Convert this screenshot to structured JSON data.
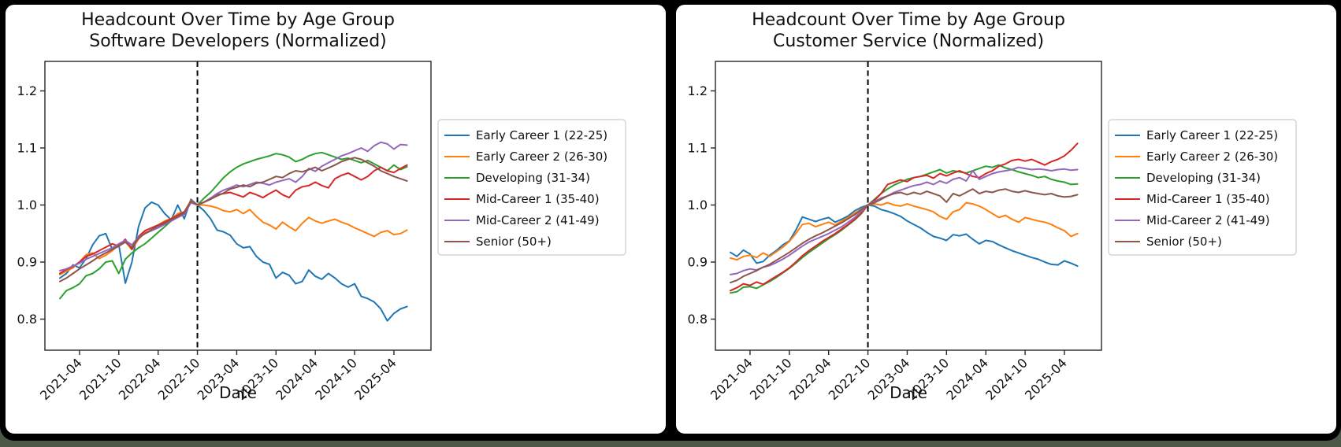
{
  "page": {
    "desktop_background": "#4d5946",
    "backdrop_color": "#000000",
    "card_background": "#ffffff"
  },
  "chart_data": [
    {
      "type": "line",
      "title_line1": "Headcount Over Time by Age Group",
      "title_line2": "Software Developers (Normalized)",
      "xlabel": "Date",
      "ylabel": "",
      "ylim": [
        0.745,
        1.252
      ],
      "grid": false,
      "legend_position": "right-outside",
      "y_tick_values": [
        0.8,
        0.9,
        1.0,
        1.1,
        1.2
      ],
      "y_tick_labels": [
        "0.8",
        "0.9",
        "1.0",
        "1.1",
        "1.2"
      ],
      "x_tick_labels": [
        "2021-04",
        "2021-10",
        "2022-04",
        "2022-10",
        "2023-04",
        "2023-10",
        "2024-04",
        "2024-10",
        "2025-04"
      ],
      "x_tick_point_indices": [
        3,
        9,
        15,
        21,
        27,
        33,
        39,
        45,
        51
      ],
      "x_months_start": "2021-01",
      "normalization_line_label": "2022-10",
      "normalization_line_index": 21,
      "series": [
        {
          "name": "Early Career 1 (22-25)",
          "color": "#1f77b4",
          "values": [
            0.872,
            0.88,
            0.895,
            0.89,
            0.906,
            0.93,
            0.946,
            0.95,
            0.922,
            0.93,
            0.863,
            0.9,
            0.962,
            0.995,
            1.005,
            1.0,
            0.985,
            0.974,
            1.0,
            0.976,
            1.01,
            1.0,
            0.99,
            0.976,
            0.956,
            0.953,
            0.947,
            0.932,
            0.925,
            0.927,
            0.91,
            0.9,
            0.896,
            0.872,
            0.882,
            0.877,
            0.862,
            0.866,
            0.886,
            0.875,
            0.87,
            0.88,
            0.872,
            0.862,
            0.856,
            0.862,
            0.84,
            0.836,
            0.83,
            0.818,
            0.797,
            0.81,
            0.818,
            0.822
          ]
        },
        {
          "name": "Early Career 2 (26-30)",
          "color": "#ff7f0e",
          "values": [
            0.878,
            0.884,
            0.89,
            0.9,
            0.913,
            0.916,
            0.906,
            0.912,
            0.92,
            0.93,
            0.935,
            0.922,
            0.94,
            0.952,
            0.955,
            0.965,
            0.972,
            0.976,
            0.985,
            0.988,
            1.008,
            1.0,
            1.0,
            0.998,
            0.995,
            0.99,
            0.988,
            0.992,
            0.985,
            0.992,
            0.98,
            0.97,
            0.965,
            0.958,
            0.97,
            0.962,
            0.955,
            0.968,
            0.978,
            0.972,
            0.968,
            0.972,
            0.975,
            0.97,
            0.966,
            0.96,
            0.955,
            0.95,
            0.945,
            0.952,
            0.955,
            0.948,
            0.95,
            0.956
          ]
        },
        {
          "name": "Developing (31-34)",
          "color": "#2ca02c",
          "values": [
            0.836,
            0.85,
            0.855,
            0.862,
            0.876,
            0.88,
            0.888,
            0.9,
            0.902,
            0.88,
            0.905,
            0.916,
            0.925,
            0.932,
            0.942,
            0.952,
            0.962,
            0.972,
            0.98,
            0.986,
            1.005,
            1.0,
            1.012,
            1.022,
            1.035,
            1.048,
            1.058,
            1.066,
            1.072,
            1.076,
            1.08,
            1.083,
            1.086,
            1.09,
            1.088,
            1.084,
            1.076,
            1.08,
            1.086,
            1.09,
            1.092,
            1.088,
            1.084,
            1.08,
            1.082,
            1.078,
            1.074,
            1.078,
            1.072,
            1.066,
            1.06,
            1.07,
            1.062,
            1.067
          ]
        },
        {
          "name": "Mid-Career 1 (35-40)",
          "color": "#d62728",
          "values": [
            0.88,
            0.887,
            0.892,
            0.9,
            0.91,
            0.914,
            0.92,
            0.926,
            0.932,
            0.928,
            0.94,
            0.922,
            0.945,
            0.955,
            0.96,
            0.965,
            0.97,
            0.976,
            0.982,
            0.988,
            1.006,
            1.0,
            1.005,
            1.012,
            1.018,
            1.02,
            1.022,
            1.018,
            1.014,
            1.022,
            1.018,
            1.013,
            1.02,
            1.026,
            1.018,
            1.013,
            1.026,
            1.032,
            1.034,
            1.04,
            1.034,
            1.03,
            1.046,
            1.052,
            1.056,
            1.05,
            1.044,
            1.05,
            1.06,
            1.066,
            1.06,
            1.057,
            1.064,
            1.07
          ]
        },
        {
          "name": "Mid-Career 2 (41-49)",
          "color": "#9467bd",
          "values": [
            0.885,
            0.888,
            0.893,
            0.898,
            0.905,
            0.91,
            0.915,
            0.92,
            0.925,
            0.932,
            0.938,
            0.93,
            0.944,
            0.95,
            0.955,
            0.96,
            0.966,
            0.972,
            0.978,
            0.984,
            1.004,
            1.0,
            1.005,
            1.012,
            1.02,
            1.026,
            1.03,
            1.035,
            1.032,
            1.036,
            1.04,
            1.038,
            1.035,
            1.04,
            1.043,
            1.046,
            1.04,
            1.05,
            1.064,
            1.059,
            1.068,
            1.074,
            1.08,
            1.086,
            1.09,
            1.095,
            1.1,
            1.094,
            1.104,
            1.11,
            1.107,
            1.098,
            1.106,
            1.105
          ]
        },
        {
          "name": "Senior (50+)",
          "color": "#8c564b",
          "values": [
            0.866,
            0.872,
            0.88,
            0.888,
            0.895,
            0.902,
            0.91,
            0.916,
            0.922,
            0.928,
            0.935,
            0.926,
            0.942,
            0.95,
            0.957,
            0.963,
            0.968,
            0.974,
            0.98,
            0.986,
            1.007,
            1.0,
            1.005,
            1.01,
            1.016,
            1.021,
            1.028,
            1.031,
            1.035,
            1.032,
            1.038,
            1.04,
            1.045,
            1.05,
            1.048,
            1.055,
            1.06,
            1.058,
            1.062,
            1.066,
            1.06,
            1.065,
            1.07,
            1.076,
            1.08,
            1.083,
            1.08,
            1.074,
            1.068,
            1.06,
            1.055,
            1.05,
            1.046,
            1.042
          ]
        }
      ]
    },
    {
      "type": "line",
      "title_line1": "Headcount Over Time by Age Group",
      "title_line2": "Customer Service (Normalized)",
      "xlabel": "Date",
      "ylabel": "",
      "ylim": [
        0.745,
        1.252
      ],
      "grid": false,
      "legend_position": "right-outside",
      "y_tick_values": [
        0.8,
        0.9,
        1.0,
        1.1,
        1.2
      ],
      "y_tick_labels": [
        "0.8",
        "0.9",
        "1.0",
        "1.1",
        "1.2"
      ],
      "x_tick_labels": [
        "2021-04",
        "2021-10",
        "2022-04",
        "2022-10",
        "2023-04",
        "2023-10",
        "2024-04",
        "2024-10",
        "2025-04"
      ],
      "x_tick_point_indices": [
        3,
        9,
        15,
        21,
        27,
        33,
        39,
        45,
        51
      ],
      "x_months_start": "2021-01",
      "normalization_line_label": "2022-10",
      "normalization_line_index": 21,
      "series": [
        {
          "name": "Early Career 1 (22-25)",
          "color": "#1f77b4",
          "values": [
            0.917,
            0.91,
            0.921,
            0.914,
            0.898,
            0.901,
            0.912,
            0.92,
            0.93,
            0.937,
            0.956,
            0.979,
            0.975,
            0.971,
            0.975,
            0.978,
            0.97,
            0.975,
            0.981,
            0.99,
            0.996,
            1.0,
            0.998,
            0.992,
            0.989,
            0.985,
            0.98,
            0.972,
            0.966,
            0.96,
            0.952,
            0.945,
            0.942,
            0.938,
            0.948,
            0.946,
            0.949,
            0.94,
            0.932,
            0.938,
            0.936,
            0.93,
            0.925,
            0.92,
            0.916,
            0.912,
            0.908,
            0.905,
            0.9,
            0.896,
            0.895,
            0.902,
            0.898,
            0.893
          ]
        },
        {
          "name": "Early Career 2 (26-30)",
          "color": "#ff7f0e",
          "values": [
            0.907,
            0.904,
            0.91,
            0.912,
            0.908,
            0.916,
            0.91,
            0.918,
            0.926,
            0.936,
            0.95,
            0.966,
            0.968,
            0.962,
            0.966,
            0.97,
            0.965,
            0.972,
            0.978,
            0.986,
            0.993,
            1.0,
            1.002,
            1.0,
            1.004,
            1.0,
            0.998,
            1.002,
            0.998,
            0.995,
            0.992,
            0.988,
            0.98,
            0.975,
            0.988,
            0.992,
            1.004,
            1.002,
            0.998,
            0.992,
            0.985,
            0.978,
            0.982,
            0.975,
            0.97,
            0.978,
            0.975,
            0.972,
            0.97,
            0.966,
            0.96,
            0.955,
            0.945,
            0.95
          ]
        },
        {
          "name": "Developing (31-34)",
          "color": "#2ca02c",
          "values": [
            0.846,
            0.848,
            0.856,
            0.857,
            0.854,
            0.86,
            0.866,
            0.873,
            0.881,
            0.889,
            0.898,
            0.908,
            0.917,
            0.925,
            0.933,
            0.941,
            0.948,
            0.956,
            0.965,
            0.974,
            0.985,
            1.0,
            1.01,
            1.02,
            1.028,
            1.035,
            1.04,
            1.045,
            1.048,
            1.05,
            1.054,
            1.058,
            1.062,
            1.056,
            1.06,
            1.058,
            1.056,
            1.06,
            1.064,
            1.068,
            1.066,
            1.07,
            1.065,
            1.062,
            1.058,
            1.055,
            1.052,
            1.048,
            1.05,
            1.045,
            1.042,
            1.04,
            1.036,
            1.037
          ]
        },
        {
          "name": "Mid-Career 1 (35-40)",
          "color": "#d62728",
          "values": [
            0.85,
            0.855,
            0.862,
            0.859,
            0.865,
            0.861,
            0.868,
            0.875,
            0.882,
            0.89,
            0.9,
            0.911,
            0.92,
            0.928,
            0.936,
            0.943,
            0.95,
            0.958,
            0.966,
            0.975,
            0.986,
            1.0,
            1.008,
            1.02,
            1.036,
            1.04,
            1.044,
            1.041,
            1.048,
            1.05,
            1.052,
            1.047,
            1.055,
            1.051,
            1.056,
            1.06,
            1.055,
            1.05,
            1.048,
            1.055,
            1.06,
            1.068,
            1.072,
            1.078,
            1.08,
            1.077,
            1.08,
            1.075,
            1.07,
            1.076,
            1.08,
            1.086,
            1.096,
            1.108
          ]
        },
        {
          "name": "Mid-Career 2 (41-49)",
          "color": "#9467bd",
          "values": [
            0.878,
            0.88,
            0.885,
            0.888,
            0.886,
            0.891,
            0.894,
            0.899,
            0.905,
            0.912,
            0.92,
            0.928,
            0.935,
            0.94,
            0.945,
            0.95,
            0.956,
            0.962,
            0.97,
            0.978,
            0.989,
            1.0,
            1.006,
            1.012,
            1.016,
            1.022,
            1.026,
            1.03,
            1.034,
            1.036,
            1.04,
            1.036,
            1.042,
            1.038,
            1.045,
            1.048,
            1.042,
            1.06,
            1.045,
            1.05,
            1.055,
            1.058,
            1.06,
            1.062,
            1.066,
            1.064,
            1.062,
            1.063,
            1.062,
            1.06,
            1.062,
            1.063,
            1.061,
            1.062
          ]
        },
        {
          "name": "Senior (50+)",
          "color": "#8c564b",
          "values": [
            0.864,
            0.868,
            0.875,
            0.88,
            0.885,
            0.891,
            0.896,
            0.903,
            0.91,
            0.917,
            0.925,
            0.933,
            0.94,
            0.946,
            0.951,
            0.957,
            0.963,
            0.969,
            0.976,
            0.983,
            0.992,
            1.0,
            1.004,
            1.01,
            1.016,
            1.02,
            1.022,
            1.018,
            1.022,
            1.019,
            1.024,
            1.02,
            1.016,
            1.005,
            1.02,
            1.016,
            1.022,
            1.028,
            1.02,
            1.024,
            1.022,
            1.026,
            1.028,
            1.024,
            1.022,
            1.025,
            1.022,
            1.02,
            1.018,
            1.02,
            1.016,
            1.014,
            1.015,
            1.018
          ]
        }
      ]
    }
  ]
}
